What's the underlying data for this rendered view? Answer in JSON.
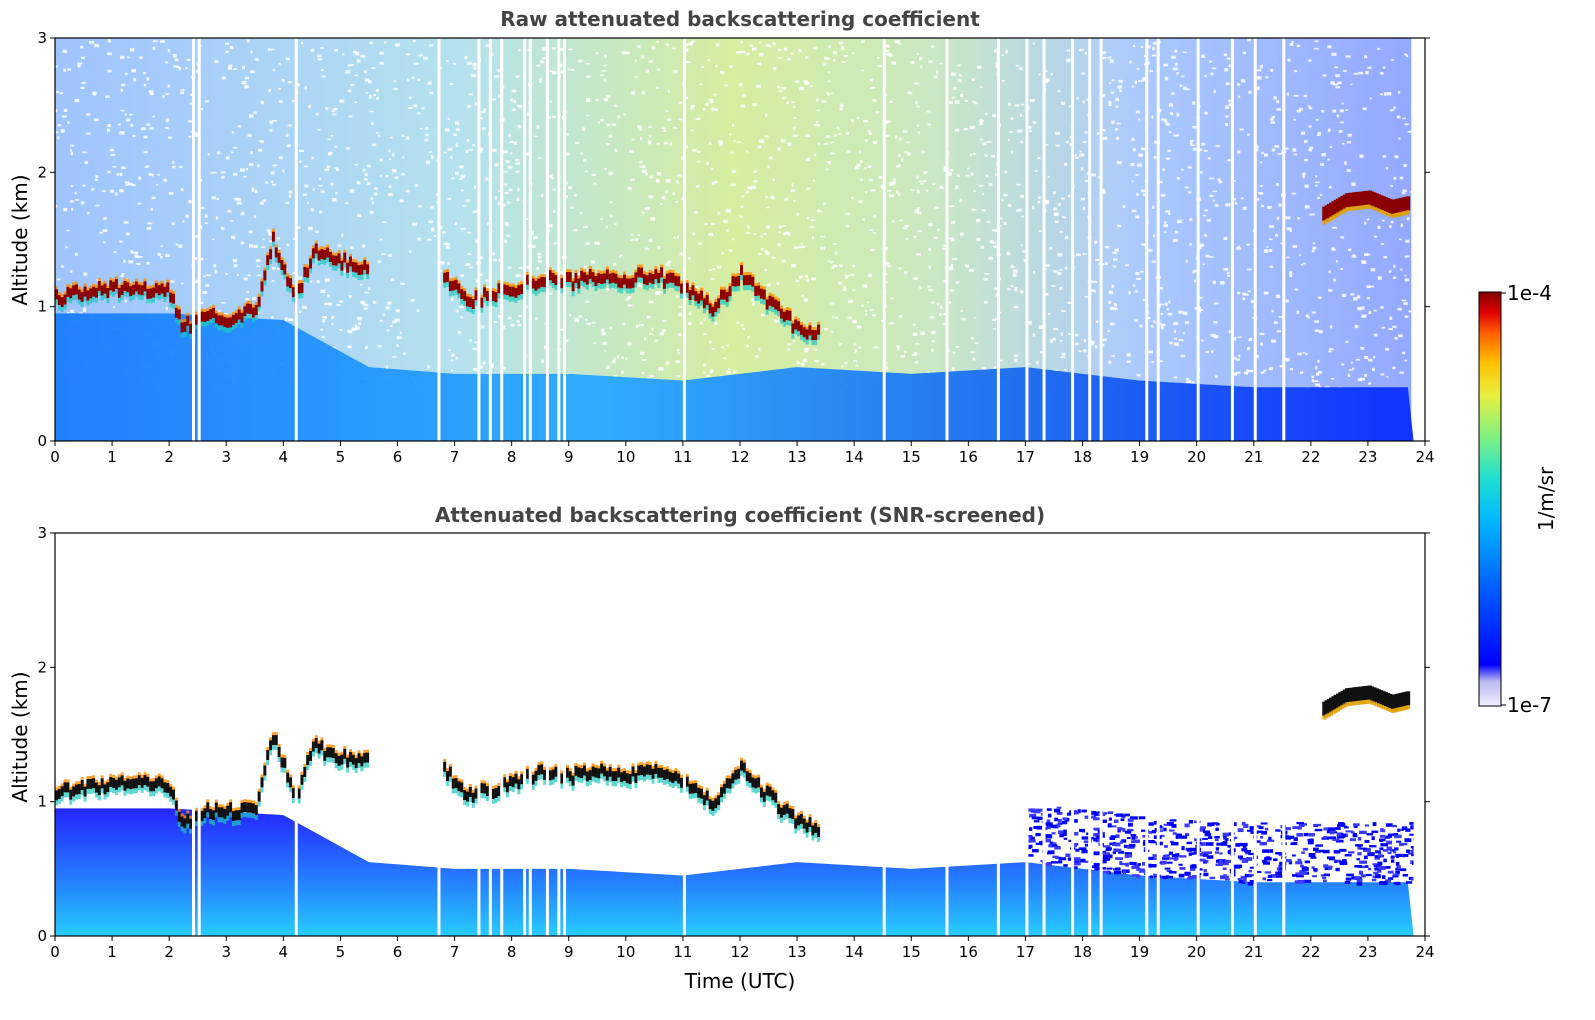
{
  "chart_data": [
    {
      "type": "heatmap",
      "title": "Raw attenuated backscattering coefficient",
      "xlabel": "",
      "ylabel": "Altitude (km)",
      "xlim": [
        0,
        24
      ],
      "ylim": [
        0,
        3
      ],
      "xticks": [
        "0",
        "1",
        "2",
        "3",
        "4",
        "5",
        "6",
        "7",
        "8",
        "9",
        "10",
        "11",
        "12",
        "13",
        "14",
        "15",
        "16",
        "17",
        "18",
        "19",
        "20",
        "21",
        "22",
        "23",
        "24"
      ],
      "yticks": [
        "0",
        "1",
        "2",
        "3"
      ],
      "layers": {
        "cloud_base_km": [
          [
            0.0,
            1.08
          ],
          [
            0.5,
            1.12
          ],
          [
            1.0,
            1.15
          ],
          [
            1.5,
            1.14
          ],
          [
            2.0,
            1.12
          ],
          [
            2.2,
            0.85
          ],
          [
            2.6,
            0.95
          ],
          [
            3.0,
            0.93
          ],
          [
            3.5,
            0.98
          ],
          [
            3.8,
            1.5
          ],
          [
            4.2,
            1.05
          ],
          [
            4.5,
            1.42
          ],
          [
            5.0,
            1.35
          ],
          [
            5.5,
            1.3
          ],
          [
            6.8,
            1.25
          ],
          [
            7.2,
            1.05
          ],
          [
            8.0,
            1.15
          ],
          [
            8.5,
            1.22
          ],
          [
            9.0,
            1.2
          ],
          [
            9.5,
            1.25
          ],
          [
            10.0,
            1.22
          ],
          [
            10.5,
            1.25
          ],
          [
            11.0,
            1.15
          ],
          [
            11.5,
            1.0
          ],
          [
            12.0,
            1.25
          ],
          [
            12.5,
            1.05
          ],
          [
            13.0,
            0.85
          ],
          [
            13.4,
            0.82
          ]
        ],
        "upper_layer_km": [
          [
            22.2,
            1.7
          ],
          [
            22.6,
            1.8
          ],
          [
            23.0,
            1.82
          ],
          [
            23.4,
            1.75
          ],
          [
            23.7,
            1.78
          ]
        ],
        "boundary_layer_top_km": [
          [
            0,
            0.95
          ],
          [
            2,
            0.95
          ],
          [
            4,
            0.9
          ],
          [
            5.5,
            0.55
          ],
          [
            7,
            0.5
          ],
          [
            9,
            0.5
          ],
          [
            11,
            0.45
          ],
          [
            13,
            0.55
          ],
          [
            15,
            0.5
          ],
          [
            17,
            0.55
          ],
          [
            19,
            0.45
          ],
          [
            21,
            0.4
          ],
          [
            23,
            0.4
          ],
          [
            24,
            0.4
          ]
        ],
        "data_gaps_utc": [
          2.4,
          2.5,
          4.2,
          6.7,
          7.4,
          7.6,
          7.8,
          8.2,
          8.3,
          8.6,
          8.8,
          8.9,
          11.0,
          14.5,
          15.6,
          16.5,
          17.0,
          17.3,
          17.8,
          18.1,
          18.3,
          19.1,
          19.3,
          20.0,
          20.6,
          21.0,
          21.5
        ]
      }
    },
    {
      "type": "heatmap",
      "title": "Attenuated backscattering coefficient (SNR-screened)",
      "xlabel": "Time (UTC)",
      "ylabel": "Altitude (km)",
      "xlim": [
        0,
        24
      ],
      "ylim": [
        0,
        3
      ],
      "xticks": [
        "0",
        "1",
        "2",
        "3",
        "4",
        "5",
        "6",
        "7",
        "8",
        "9",
        "10",
        "11",
        "12",
        "13",
        "14",
        "15",
        "16",
        "17",
        "18",
        "19",
        "20",
        "21",
        "22",
        "23",
        "24"
      ],
      "yticks": [
        "0",
        "1",
        "2",
        "3"
      ]
    }
  ],
  "colorbar": {
    "label": "1/m/sr",
    "max_label": "1e-4",
    "min_label": "1e-7",
    "colors": [
      "#f0f0ff",
      "#b8b8f0",
      "#0000ff",
      "#0066ff",
      "#00b8ff",
      "#20e0d0",
      "#80f080",
      "#e8f040",
      "#ffc000",
      "#ff6000",
      "#e00000",
      "#800000"
    ]
  }
}
